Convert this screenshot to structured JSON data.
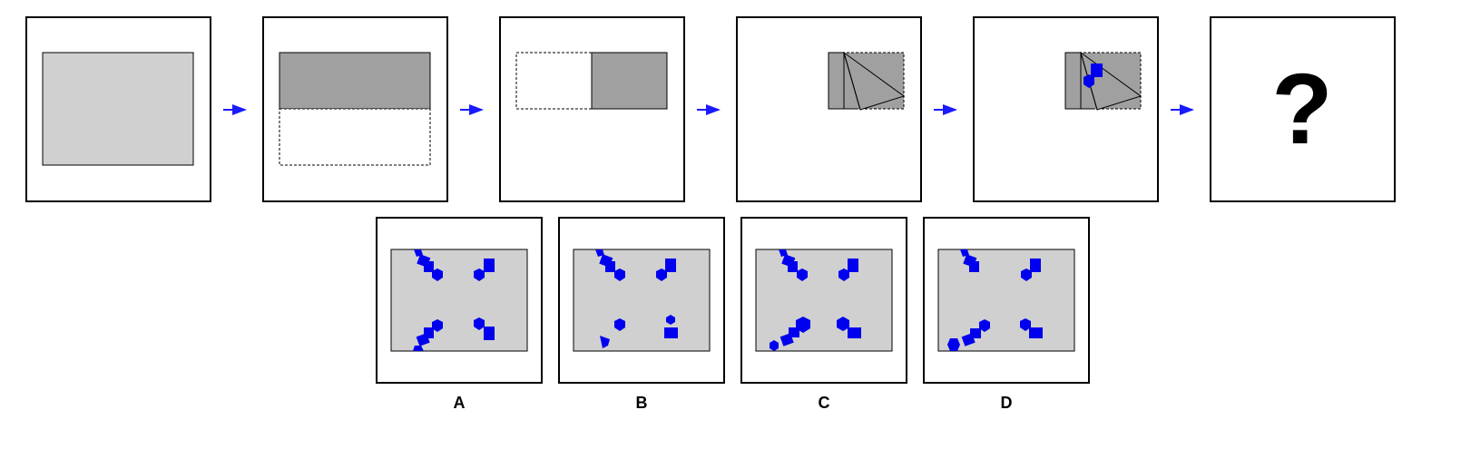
{
  "puzzle": {
    "question_mark": "?",
    "colors": {
      "paper_light": "#d0d0d0",
      "paper_dark": "#a0a0a0",
      "hole": "#0000ee",
      "arrow": "#1a1aff",
      "border": "#000000"
    },
    "steps": [
      {
        "name": "panel-unfolded-paper"
      },
      {
        "name": "panel-fold-bottom-up"
      },
      {
        "name": "panel-fold-left-to-right"
      },
      {
        "name": "panel-fold-diagonal"
      },
      {
        "name": "panel-punch-holes"
      },
      {
        "name": "panel-question"
      }
    ],
    "arrow_icon": "right-arrow-icon"
  },
  "options": [
    {
      "label": "A"
    },
    {
      "label": "B"
    },
    {
      "label": "C"
    },
    {
      "label": "D"
    }
  ]
}
